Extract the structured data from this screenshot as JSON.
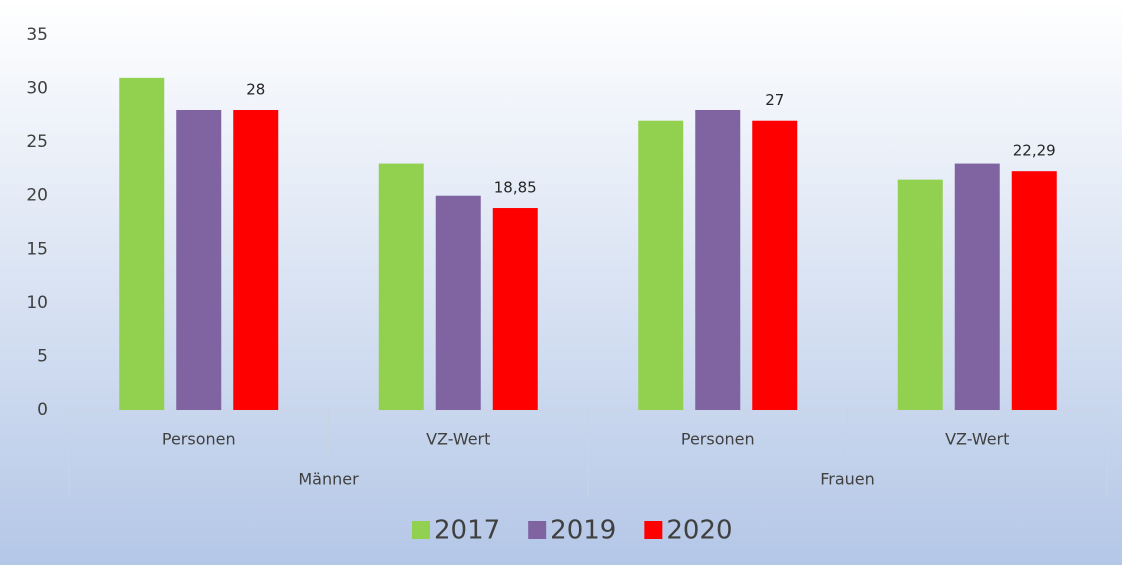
{
  "chart_data": {
    "type": "bar",
    "groups": [
      {
        "name": "Männer",
        "categories": [
          "Personen",
          "VZ-Wert"
        ]
      },
      {
        "name": "Frauen",
        "categories": [
          "Personen",
          "VZ-Wert"
        ]
      }
    ],
    "series": [
      {
        "name": "2017",
        "color": "#92d050",
        "values": [
          31,
          23,
          27,
          21.5
        ]
      },
      {
        "name": "2019",
        "color": "#8064a2",
        "values": [
          28,
          20,
          28,
          23
        ]
      },
      {
        "name": "2020",
        "color": "#ff0000",
        "values": [
          28,
          18.85,
          27,
          22.29
        ],
        "value_labels": [
          "28",
          "18,85",
          "27",
          "22,29"
        ]
      }
    ],
    "ylim": [
      0,
      35
    ],
    "yticks": [
      0,
      5,
      10,
      15,
      20,
      25,
      30,
      35
    ],
    "grid": false,
    "legend": "bottom"
  }
}
